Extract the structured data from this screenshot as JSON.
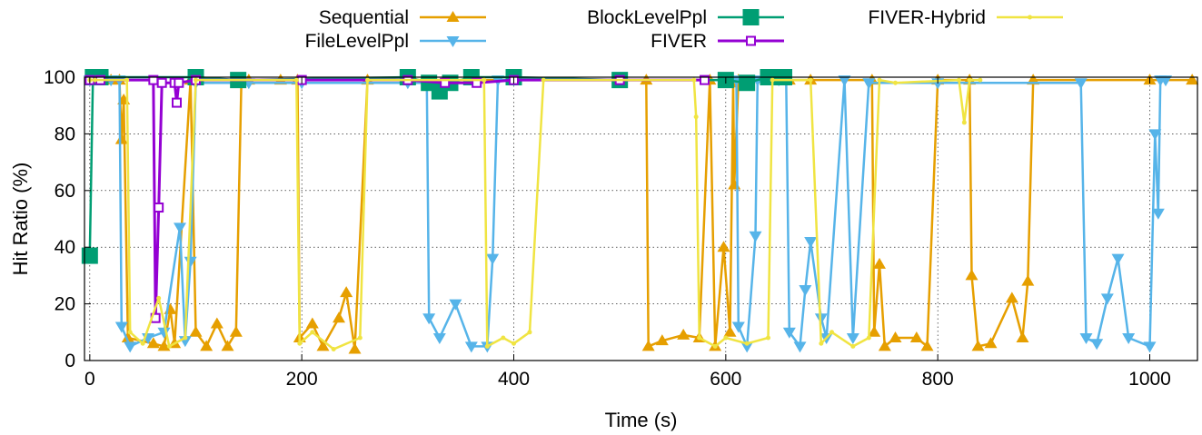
{
  "chart_data": {
    "type": "line",
    "title": "",
    "xlabel": "Time (s)",
    "ylabel": "Hit Ratio (%)",
    "xlim": [
      -5,
      1045
    ],
    "ylim": [
      0,
      100
    ],
    "xticks": [
      0,
      200,
      400,
      600,
      800,
      1000
    ],
    "yticks": [
      0,
      20,
      40,
      60,
      80,
      100
    ],
    "grid": true,
    "legend_position": "top",
    "series": [
      {
        "name": "Sequential",
        "color": "#e69f00",
        "marker": "triangle-up",
        "points": [
          [
            20,
            99
          ],
          [
            28,
            99
          ],
          [
            30,
            78
          ],
          [
            32,
            92
          ],
          [
            36,
            8
          ],
          [
            60,
            6
          ],
          [
            70,
            5
          ],
          [
            76,
            18
          ],
          [
            80,
            6
          ],
          [
            95,
            99
          ],
          [
            100,
            10
          ],
          [
            110,
            5
          ],
          [
            120,
            13
          ],
          [
            130,
            5
          ],
          [
            138,
            10
          ],
          [
            143,
            99
          ],
          [
            150,
            99
          ],
          [
            180,
            99
          ],
          [
            196,
            99
          ],
          [
            198,
            8
          ],
          [
            210,
            13
          ],
          [
            220,
            5
          ],
          [
            235,
            15
          ],
          [
            242,
            24
          ],
          [
            250,
            4
          ],
          [
            262,
            99
          ],
          [
            300,
            99
          ],
          [
            400,
            99
          ],
          [
            525,
            99
          ],
          [
            527,
            5
          ],
          [
            540,
            7
          ],
          [
            560,
            9
          ],
          [
            575,
            8
          ],
          [
            585,
            99
          ],
          [
            590,
            5
          ],
          [
            598,
            40
          ],
          [
            604,
            10
          ],
          [
            607,
            98
          ],
          [
            608,
            62
          ],
          [
            612,
            99
          ],
          [
            660,
            99
          ],
          [
            680,
            99
          ],
          [
            738,
            99
          ],
          [
            740,
            10
          ],
          [
            745,
            34
          ],
          [
            750,
            5
          ],
          [
            760,
            8
          ],
          [
            780,
            8
          ],
          [
            790,
            5
          ],
          [
            800,
            99
          ],
          [
            830,
            99
          ],
          [
            832,
            30
          ],
          [
            838,
            5
          ],
          [
            850,
            6
          ],
          [
            870,
            22
          ],
          [
            880,
            8
          ],
          [
            885,
            28
          ],
          [
            890,
            99
          ],
          [
            1000,
            99
          ],
          [
            1040,
            99
          ]
        ]
      },
      {
        "name": "FileLevelPpl",
        "color": "#56b4e9",
        "marker": "triangle-down",
        "points": [
          [
            0,
            99
          ],
          [
            20,
            99
          ],
          [
            28,
            99
          ],
          [
            30,
            12
          ],
          [
            38,
            5
          ],
          [
            55,
            8
          ],
          [
            70,
            10
          ],
          [
            85,
            47
          ],
          [
            90,
            7
          ],
          [
            95,
            35
          ],
          [
            100,
            98
          ],
          [
            150,
            98
          ],
          [
            200,
            98
          ],
          [
            300,
            98
          ],
          [
            318,
            98
          ],
          [
            320,
            15
          ],
          [
            330,
            8
          ],
          [
            345,
            20
          ],
          [
            360,
            5
          ],
          [
            375,
            5
          ],
          [
            380,
            36
          ],
          [
            385,
            99
          ],
          [
            400,
            99
          ],
          [
            600,
            99
          ],
          [
            610,
            99
          ],
          [
            612,
            12
          ],
          [
            620,
            5
          ],
          [
            628,
            44
          ],
          [
            630,
            99
          ],
          [
            650,
            99
          ],
          [
            657,
            99
          ],
          [
            660,
            10
          ],
          [
            670,
            5
          ],
          [
            675,
            25
          ],
          [
            680,
            42
          ],
          [
            690,
            15
          ],
          [
            695,
            8
          ],
          [
            712,
            99
          ],
          [
            720,
            8
          ],
          [
            735,
            98
          ],
          [
            800,
            98
          ],
          [
            935,
            98
          ],
          [
            940,
            8
          ],
          [
            950,
            6
          ],
          [
            960,
            22
          ],
          [
            970,
            36
          ],
          [
            980,
            8
          ],
          [
            1000,
            5
          ],
          [
            1005,
            80
          ],
          [
            1008,
            52
          ],
          [
            1010,
            99
          ],
          [
            1015,
            99
          ]
        ]
      },
      {
        "name": "BlockLevelPpl",
        "color": "#009e73",
        "marker": "square",
        "points": [
          [
            0,
            37
          ],
          [
            3,
            100
          ],
          [
            10,
            100
          ],
          [
            100,
            100
          ],
          [
            140,
            99
          ],
          [
            300,
            100
          ],
          [
            320,
            98
          ],
          [
            330,
            95
          ],
          [
            340,
            98
          ],
          [
            360,
            100
          ],
          [
            400,
            100
          ],
          [
            500,
            99
          ],
          [
            600,
            99
          ],
          [
            620,
            98
          ],
          [
            640,
            100
          ],
          [
            655,
            100
          ]
        ]
      },
      {
        "name": "FIVER",
        "color": "#9400d3",
        "marker": "square-open",
        "points": [
          [
            0,
            99
          ],
          [
            10,
            99
          ],
          [
            60,
            99
          ],
          [
            62,
            15
          ],
          [
            65,
            54
          ],
          [
            68,
            98
          ],
          [
            80,
            98
          ],
          [
            82,
            91
          ],
          [
            84,
            98
          ],
          [
            100,
            99
          ],
          [
            200,
            99
          ],
          [
            300,
            99
          ],
          [
            335,
            98
          ],
          [
            365,
            98
          ],
          [
            400,
            99
          ],
          [
            500,
            99
          ],
          [
            580,
            99
          ]
        ]
      },
      {
        "name": "FIVER-Hybrid",
        "color": "#f0e442",
        "marker": "dot",
        "points": [
          [
            0,
            99
          ],
          [
            5,
            99
          ],
          [
            35,
            99
          ],
          [
            38,
            10
          ],
          [
            50,
            6
          ],
          [
            65,
            22
          ],
          [
            75,
            5
          ],
          [
            90,
            8
          ],
          [
            100,
            99
          ],
          [
            195,
            99
          ],
          [
            198,
            6
          ],
          [
            210,
            10
          ],
          [
            230,
            4
          ],
          [
            255,
            8
          ],
          [
            262,
            99
          ],
          [
            372,
            99
          ],
          [
            375,
            5
          ],
          [
            390,
            8
          ],
          [
            400,
            6
          ],
          [
            415,
            10
          ],
          [
            428,
            99
          ],
          [
            570,
            99
          ],
          [
            572,
            86
          ],
          [
            575,
            8
          ],
          [
            590,
            5
          ],
          [
            600,
            8
          ],
          [
            620,
            6
          ],
          [
            640,
            8
          ],
          [
            644,
            99
          ],
          [
            680,
            99
          ],
          [
            690,
            6
          ],
          [
            700,
            10
          ],
          [
            720,
            5
          ],
          [
            735,
            8
          ],
          [
            745,
            99
          ],
          [
            760,
            98
          ],
          [
            820,
            99
          ],
          [
            825,
            84
          ],
          [
            830,
            99
          ],
          [
            840,
            99
          ]
        ]
      }
    ]
  }
}
